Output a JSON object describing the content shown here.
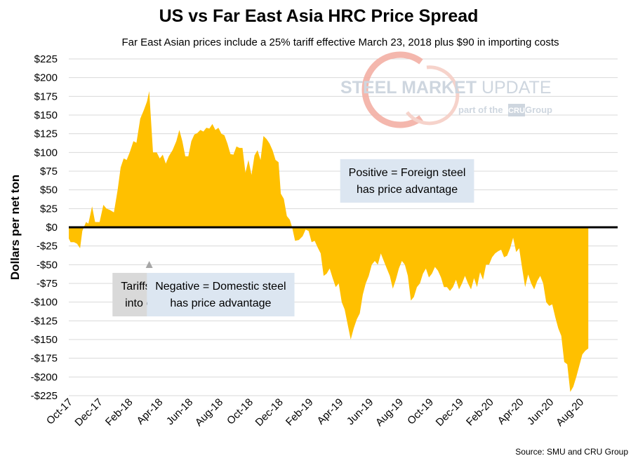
{
  "chart_data": {
    "type": "area",
    "title": "US vs Far East Asia HRC Price Spread",
    "subtitle": "Far East Asian prices include a 25% tariff effective March 23, 2018 plus $90 in importing costs",
    "xlabel": "",
    "ylabel": "Dollars per net ton",
    "ylim": [
      -225,
      225
    ],
    "ytick_step": 25,
    "yticks": [
      "$225",
      "$200",
      "$175",
      "$150",
      "$125",
      "$100",
      "$75",
      "$50",
      "$25",
      "$0",
      "-$25",
      "-$50",
      "-$75",
      "-$100",
      "-$125",
      "-$150",
      "-$175",
      "-$200",
      "-$225"
    ],
    "xlim": [
      0,
      36.5
    ],
    "xticks": [
      {
        "label": "Oct-17",
        "x": 0
      },
      {
        "label": "Dec-17",
        "x": 2
      },
      {
        "label": "Feb-18",
        "x": 4
      },
      {
        "label": "Apr-18",
        "x": 6
      },
      {
        "label": "Jun-18",
        "x": 8
      },
      {
        "label": "Aug-18",
        "x": 10
      },
      {
        "label": "Oct-18",
        "x": 12
      },
      {
        "label": "Dec-18",
        "x": 14
      },
      {
        "label": "Feb-19",
        "x": 16
      },
      {
        "label": "Apr-19",
        "x": 18
      },
      {
        "label": "Jun-19",
        "x": 20
      },
      {
        "label": "Aug-19",
        "x": 22
      },
      {
        "label": "Oct-19",
        "x": 24
      },
      {
        "label": "Dec-19",
        "x": 26
      },
      {
        "label": "Feb-20",
        "x": 28
      },
      {
        "label": "Apr-20",
        "x": 30
      },
      {
        "label": "Jun-20",
        "x": 32
      },
      {
        "label": "Aug-20",
        "x": 34
      }
    ],
    "x_units": "months since Oct-17",
    "series": [
      {
        "name": "HRC price spread",
        "color": "#ffc000",
        "points": [
          [
            0,
            -15
          ],
          [
            0.12,
            -20
          ],
          [
            0.35,
            -20
          ],
          [
            0.55,
            -22
          ],
          [
            0.75,
            -28
          ],
          [
            0.9,
            -5
          ],
          [
            1.15,
            7
          ],
          [
            1.3,
            5
          ],
          [
            1.55,
            28
          ],
          [
            1.75,
            7
          ],
          [
            2.05,
            7
          ],
          [
            2.3,
            30
          ],
          [
            2.5,
            25
          ],
          [
            2.75,
            23
          ],
          [
            3.0,
            20
          ],
          [
            3.25,
            50
          ],
          [
            3.45,
            80
          ],
          [
            3.65,
            92
          ],
          [
            3.85,
            90
          ],
          [
            4.05,
            100
          ],
          [
            4.3,
            115
          ],
          [
            4.5,
            113
          ],
          [
            4.75,
            145
          ],
          [
            5.0,
            157
          ],
          [
            5.2,
            168
          ],
          [
            5.35,
            182
          ],
          [
            5.6,
            100
          ],
          [
            5.85,
            100
          ],
          [
            6.05,
            92
          ],
          [
            6.25,
            97
          ],
          [
            6.45,
            85
          ],
          [
            6.65,
            95
          ],
          [
            6.9,
            103
          ],
          [
            7.15,
            115
          ],
          [
            7.35,
            130
          ],
          [
            7.55,
            115
          ],
          [
            7.75,
            95
          ],
          [
            7.95,
            95
          ],
          [
            8.15,
            115
          ],
          [
            8.35,
            124
          ],
          [
            8.55,
            126
          ],
          [
            8.75,
            130
          ],
          [
            8.95,
            128
          ],
          [
            9.15,
            133
          ],
          [
            9.35,
            132
          ],
          [
            9.55,
            138
          ],
          [
            9.75,
            130
          ],
          [
            9.95,
            133
          ],
          [
            10.15,
            125
          ],
          [
            10.35,
            123
          ],
          [
            10.55,
            112
          ],
          [
            10.75,
            98
          ],
          [
            10.95,
            97
          ],
          [
            11.15,
            108
          ],
          [
            11.35,
            106
          ],
          [
            11.55,
            106
          ],
          [
            11.75,
            73
          ],
          [
            11.95,
            90
          ],
          [
            12.15,
            70
          ],
          [
            12.35,
            96
          ],
          [
            12.55,
            103
          ],
          [
            12.75,
            90
          ],
          [
            12.95,
            122
          ],
          [
            13.15,
            118
          ],
          [
            13.35,
            112
          ],
          [
            13.55,
            103
          ],
          [
            13.75,
            90
          ],
          [
            13.95,
            87
          ],
          [
            14.1,
            45
          ],
          [
            14.3,
            38
          ],
          [
            14.5,
            15
          ],
          [
            14.7,
            10
          ],
          [
            14.85,
            0
          ],
          [
            15.05,
            -18
          ],
          [
            15.3,
            -17
          ],
          [
            15.55,
            -12
          ],
          [
            15.75,
            -3
          ],
          [
            15.95,
            -5
          ],
          [
            16.15,
            -20
          ],
          [
            16.35,
            -18
          ],
          [
            16.55,
            -27
          ],
          [
            16.75,
            -35
          ],
          [
            16.95,
            -65
          ],
          [
            17.15,
            -62
          ],
          [
            17.35,
            -55
          ],
          [
            17.55,
            -68
          ],
          [
            17.75,
            -80
          ],
          [
            17.95,
            -75
          ],
          [
            18.15,
            -100
          ],
          [
            18.35,
            -110
          ],
          [
            18.55,
            -130
          ],
          [
            18.75,
            -150
          ],
          [
            18.95,
            -135
          ],
          [
            19.15,
            -123
          ],
          [
            19.35,
            -115
          ],
          [
            19.55,
            -90
          ],
          [
            19.75,
            -75
          ],
          [
            19.95,
            -65
          ],
          [
            20.15,
            -50
          ],
          [
            20.35,
            -45
          ],
          [
            20.55,
            -50
          ],
          [
            20.75,
            -35
          ],
          [
            20.95,
            -45
          ],
          [
            21.15,
            -55
          ],
          [
            21.35,
            -65
          ],
          [
            21.55,
            -82
          ],
          [
            21.75,
            -70
          ],
          [
            21.95,
            -55
          ],
          [
            22.15,
            -45
          ],
          [
            22.35,
            -50
          ],
          [
            22.55,
            -65
          ],
          [
            22.75,
            -98
          ],
          [
            22.95,
            -93
          ],
          [
            23.15,
            -80
          ],
          [
            23.35,
            -75
          ],
          [
            23.55,
            -62
          ],
          [
            23.75,
            -55
          ],
          [
            23.95,
            -67
          ],
          [
            24.15,
            -62
          ],
          [
            24.35,
            -53
          ],
          [
            24.55,
            -58
          ],
          [
            24.75,
            -67
          ],
          [
            24.95,
            -80
          ],
          [
            25.15,
            -80
          ],
          [
            25.35,
            -85
          ],
          [
            25.55,
            -80
          ],
          [
            25.75,
            -70
          ],
          [
            25.95,
            -83
          ],
          [
            26.15,
            -75
          ],
          [
            26.35,
            -65
          ],
          [
            26.55,
            -75
          ],
          [
            26.75,
            -83
          ],
          [
            26.95,
            -68
          ],
          [
            27.15,
            -80
          ],
          [
            27.35,
            -60
          ],
          [
            27.55,
            -70
          ],
          [
            27.75,
            -50
          ],
          [
            27.95,
            -50
          ],
          [
            28.15,
            -40
          ],
          [
            28.35,
            -35
          ],
          [
            28.55,
            -32
          ],
          [
            28.75,
            -30
          ],
          [
            28.95,
            -40
          ],
          [
            29.15,
            -38
          ],
          [
            29.35,
            -28
          ],
          [
            29.55,
            -14
          ],
          [
            29.75,
            -33
          ],
          [
            29.95,
            -28
          ],
          [
            30.15,
            -55
          ],
          [
            30.35,
            -80
          ],
          [
            30.55,
            -63
          ],
          [
            30.75,
            -75
          ],
          [
            30.95,
            -83
          ],
          [
            31.15,
            -72
          ],
          [
            31.35,
            -65
          ],
          [
            31.55,
            -75
          ],
          [
            31.75,
            -100
          ],
          [
            31.95,
            -105
          ],
          [
            32.15,
            -103
          ],
          [
            32.35,
            -120
          ],
          [
            32.55,
            -135
          ],
          [
            32.75,
            -145
          ],
          [
            32.95,
            -180
          ],
          [
            33.15,
            -183
          ],
          [
            33.35,
            -220
          ],
          [
            33.55,
            -213
          ],
          [
            33.75,
            -200
          ],
          [
            33.95,
            -185
          ],
          [
            34.15,
            -170
          ],
          [
            34.35,
            -165
          ],
          [
            34.55,
            -162
          ]
        ]
      }
    ],
    "zero_line_color": "#000000",
    "annotations": [
      {
        "id": "tariff",
        "text_lines": [
          "Tariffs went",
          "into effect"
        ],
        "x": 5.35,
        "y": -90,
        "box_color": "#d9d9d9",
        "arrow_color": "#a6a6a6",
        "arrow_tip_y": -45
      },
      {
        "id": "negative",
        "text_lines": [
          "Negative = Domestic steel",
          "has price advantage"
        ],
        "x": 10.1,
        "y": -90,
        "box_color": "#dce6f1"
      },
      {
        "id": "positive",
        "text_lines": [
          "Positive = Foreign steel",
          "has price advantage"
        ],
        "x": 22.5,
        "y": 62,
        "box_color": "#dce6f1"
      }
    ],
    "source": "Source: SMU and CRU Group"
  },
  "watermark": {
    "line1_a": "STEEL ",
    "line1_b": "MARKET ",
    "line1_c": "UPDATE",
    "line2_a": "part of the ",
    "line2_badge": "CRU",
    "line2_b": " Group",
    "color": "#c9d2dc",
    "accent": "#e86d5a"
  }
}
